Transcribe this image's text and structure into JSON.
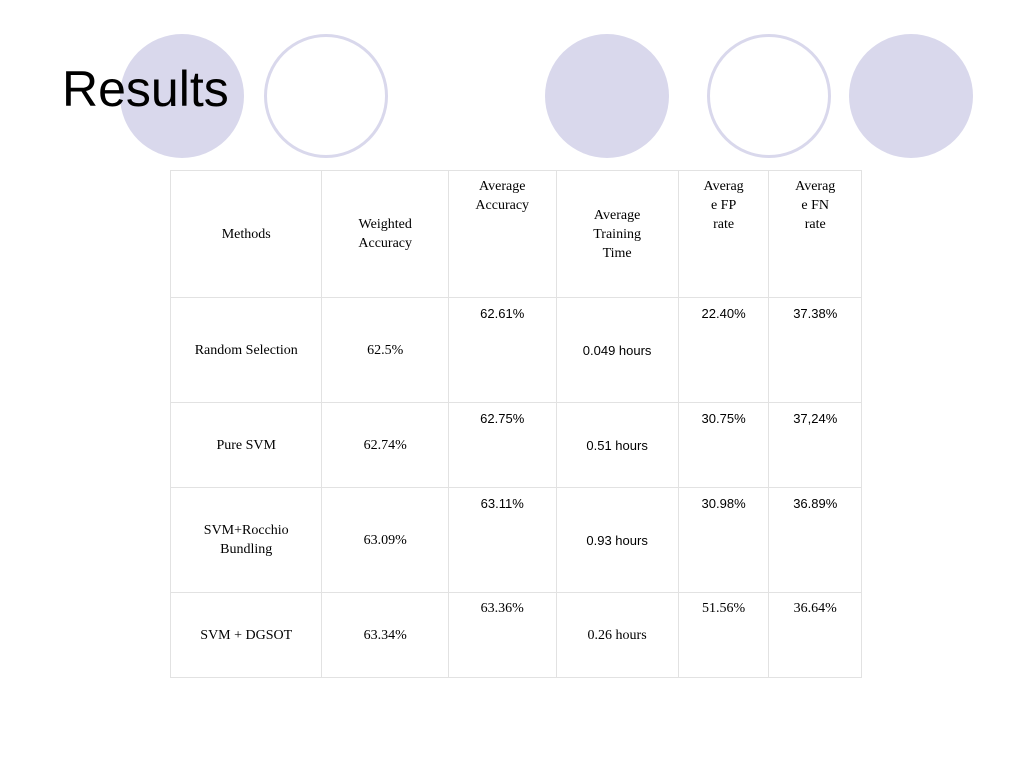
{
  "slide": {
    "title": "Results"
  },
  "table": {
    "headers": [
      "Methods",
      "Weighted\nAccuracy",
      "Average\nAccuracy",
      "Average\nTraining\nTime",
      "Averag\ne FP\nrate",
      "Averag\ne FN\nrate"
    ],
    "rows": [
      [
        "Random Selection",
        "62.5%",
        "62.61%",
        "0.049 hours",
        "22.40%",
        "37.38%"
      ],
      [
        "Pure SVM",
        "62.74%",
        "62.75%",
        "0.51 hours",
        "30.75%",
        "37,24%"
      ],
      [
        "SVM+Rocchio\nBundling",
        "63.09%",
        "63.11%",
        "0.93 hours",
        "30.98%",
        "36.89%"
      ],
      [
        "SVM + DGSOT",
        "63.34%",
        "63.36%",
        "0.26 hours",
        "51.56%",
        "36.64%"
      ]
    ]
  }
}
